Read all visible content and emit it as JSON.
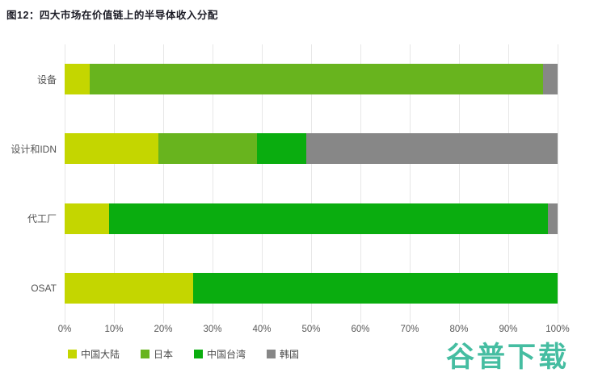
{
  "title": "图12：四大市场在价值链上的半导体收入分配",
  "watermark": {
    "text": "谷普下载",
    "color": "#45BDA1"
  },
  "chart_data": {
    "type": "bar",
    "orientation": "horizontal",
    "stacked": true,
    "title": "图12：四大市场在价值链上的半导体收入分配",
    "categories": [
      "设备",
      "设计和IDN",
      "代工厂",
      "OSAT"
    ],
    "series": [
      {
        "name": "中国大陆",
        "color": "#C4D600",
        "values": [
          5,
          19,
          9,
          26
        ]
      },
      {
        "name": "日本",
        "color": "#68B41E",
        "values": [
          92,
          20,
          0,
          0
        ]
      },
      {
        "name": "中国台湾",
        "color": "#0AAD0F",
        "values": [
          0,
          10,
          89,
          74
        ]
      },
      {
        "name": "韩国",
        "color": "#878787",
        "values": [
          3,
          51,
          2,
          0
        ]
      }
    ],
    "x_ticks": [
      "0%",
      "10%",
      "20%",
      "30%",
      "40%",
      "50%",
      "60%",
      "70%",
      "80%",
      "90%",
      "100%"
    ],
    "xlim": [
      0,
      100
    ],
    "grid": "vertical",
    "gridline_color": "#e7e7e7",
    "legend_position": "bottom-left"
  }
}
